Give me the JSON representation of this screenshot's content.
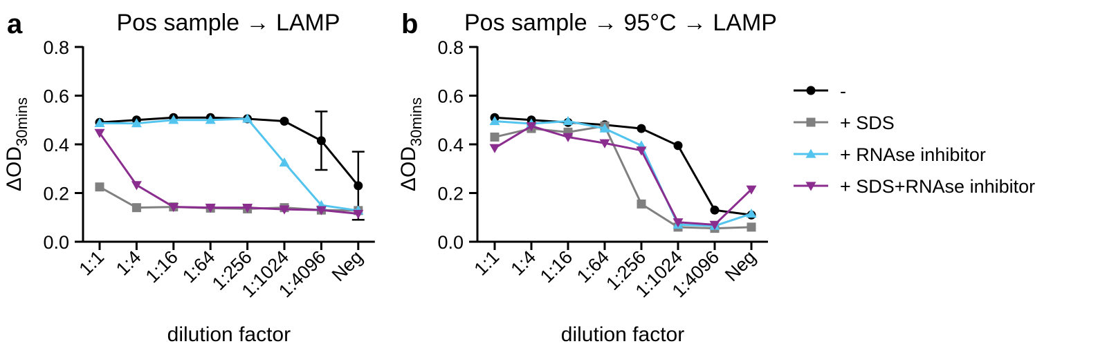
{
  "chart_data": [
    {
      "type": "line",
      "panel_label": "a",
      "title": "Pos sample → LAMP",
      "xlabel": "dilution factor",
      "ylabel": "ΔOD",
      "ylabel_sub": "30mins",
      "categories": [
        "1:1",
        "1:4",
        "1:16",
        "1:64",
        "1:256",
        "1:1024",
        "1:4096",
        "Neg"
      ],
      "ylim": [
        0,
        0.8
      ],
      "yticks": [
        "0.0",
        "0.2",
        "0.4",
        "0.6",
        "0.8"
      ],
      "series": [
        {
          "name": "-",
          "color": "#000000",
          "marker": "circle",
          "values": [
            0.49,
            0.5,
            0.51,
            0.51,
            0.505,
            0.495,
            0.415,
            0.23
          ],
          "error": [
            0,
            0,
            0,
            0,
            0,
            0,
            0.12,
            0.14
          ]
        },
        {
          "name": "+ SDS",
          "color": "#808080",
          "marker": "square",
          "values": [
            0.225,
            0.14,
            0.143,
            0.138,
            0.135,
            0.14,
            0.13,
            0.128
          ]
        },
        {
          "name": "+ RNAse inhibitor",
          "color": "#52c4ee",
          "marker": "triangle-up",
          "values": [
            0.487,
            0.486,
            0.5,
            0.5,
            0.505,
            0.325,
            0.15,
            0.128
          ]
        },
        {
          "name": "+ SDS+RNAse inhibitor",
          "color": "#8b2d8f",
          "marker": "triangle-down",
          "values": [
            0.447,
            0.233,
            0.143,
            0.14,
            0.14,
            0.133,
            0.13,
            0.115
          ]
        }
      ]
    },
    {
      "type": "line",
      "panel_label": "b",
      "title": "Pos sample → 95°C → LAMP",
      "xlabel": "dilution factor",
      "ylabel": "ΔOD",
      "ylabel_sub": "30mins",
      "categories": [
        "1:1",
        "1:4",
        "1:16",
        "1:64",
        "1:256",
        "1:1024",
        "1:4096",
        "Neg"
      ],
      "ylim": [
        0,
        0.8
      ],
      "yticks": [
        "0.0",
        "0.2",
        "0.4",
        "0.6",
        "0.8"
      ],
      "series": [
        {
          "name": "-",
          "color": "#000000",
          "marker": "circle",
          "values": [
            0.51,
            0.5,
            0.49,
            0.48,
            0.465,
            0.395,
            0.13,
            0.11
          ]
        },
        {
          "name": "+ SDS",
          "color": "#808080",
          "marker": "square",
          "values": [
            0.43,
            0.465,
            0.45,
            0.475,
            0.155,
            0.06,
            0.055,
            0.06
          ]
        },
        {
          "name": "+ RNAse inhibitor",
          "color": "#52c4ee",
          "marker": "triangle-up",
          "values": [
            0.495,
            0.485,
            0.495,
            0.465,
            0.395,
            0.07,
            0.065,
            0.115
          ]
        },
        {
          "name": "+ SDS+RNAse inhibitor",
          "color": "#8b2d8f",
          "marker": "triangle-down",
          "values": [
            0.385,
            0.475,
            0.43,
            0.405,
            0.375,
            0.08,
            0.07,
            0.215
          ]
        }
      ]
    }
  ],
  "legend": {
    "placement": "right",
    "entries": [
      "-",
      "+ SDS",
      "+ RNAse inhibitor",
      "+ SDS+RNAse inhibitor"
    ]
  }
}
